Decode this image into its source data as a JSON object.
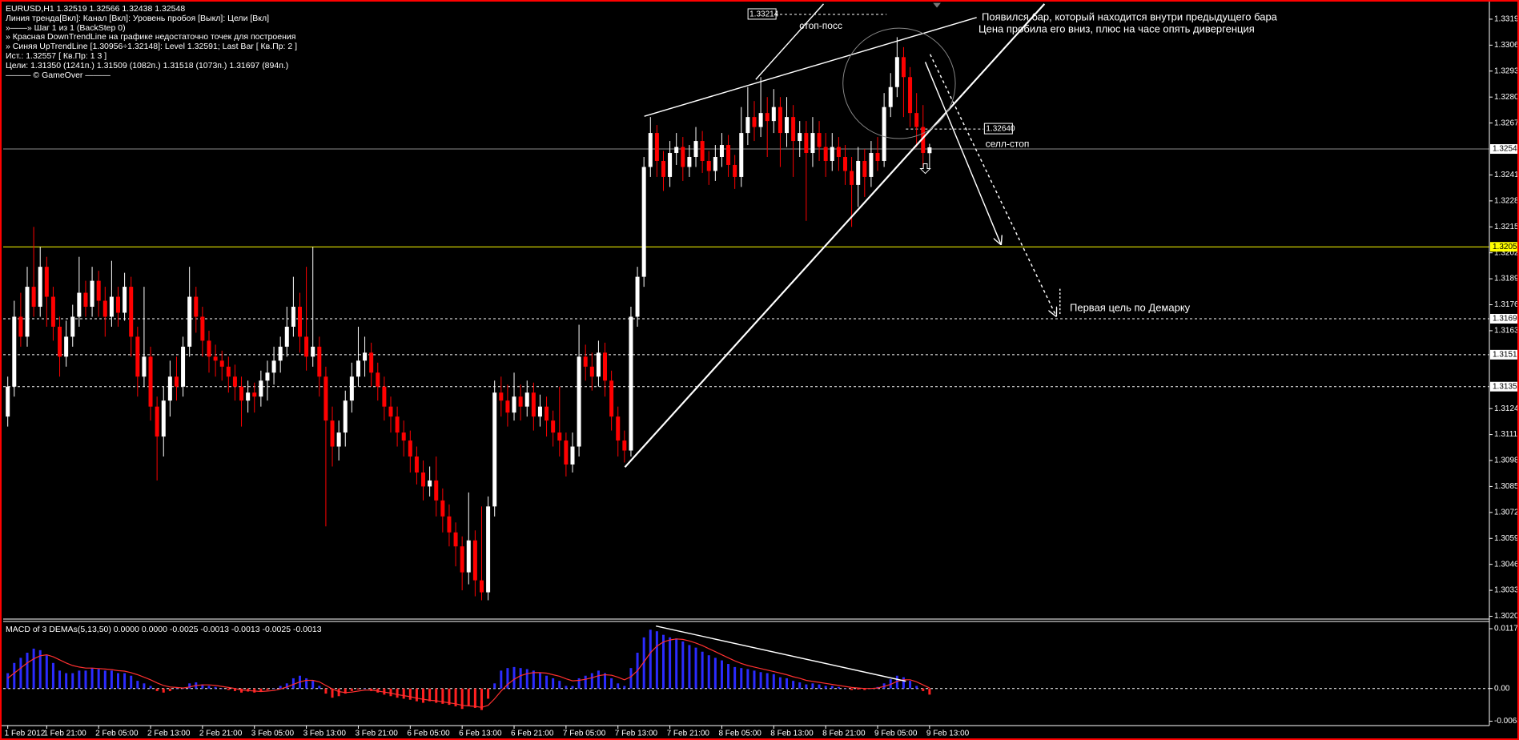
{
  "header": {
    "lines": [
      "EURUSD,H1  1.32519 1.32566 1.32438 1.32548",
      "Линия тренда[Вкл]: Канал [Вкл]: Уровень пробоя [Выкл]: Цели [Вкл]",
      "»——» Шаг 1 из 1 (BackStep 0)",
      "» Красная DownTrendLine на графике недостаточно точек для построения",
      "» Синяя UpTrendLine [1.30956÷1.32148]: Level 1.32591; Last Bar [ Кв.Пр: 2 ]",
      "Ист.: 1.32557 [ Кв.Пр: 1 3 ]",
      "Цели: 1.31350 (1241п.) 1.31509 (1082п.) 1.31518 (1073п.) 1.31697 (894п.)",
      "——— © GameOver ———"
    ]
  },
  "chart_data": [
    {
      "type": "candlestick",
      "up_color": "#ffffff",
      "down_color": "#ff0000",
      "open": [
        1.312,
        1.3135,
        1.317,
        1.316,
        1.3185,
        1.3175,
        1.3195,
        1.318,
        1.3165,
        1.315,
        1.316,
        1.317,
        1.3182,
        1.3175,
        1.3188,
        1.3178,
        1.317,
        1.318,
        1.3172,
        1.3185,
        1.316,
        1.314,
        1.315,
        1.3125,
        1.311,
        1.3128,
        1.314,
        1.3135,
        1.3155,
        1.318,
        1.317,
        1.3158,
        1.315,
        1.3148,
        1.3145,
        1.314,
        1.3135,
        1.3128,
        1.3132,
        1.313,
        1.3138,
        1.3142,
        1.3148,
        1.3155,
        1.3165,
        1.3175,
        1.316,
        1.315,
        1.3155,
        1.314,
        1.3118,
        1.3105,
        1.3112,
        1.3128,
        1.314,
        1.3148,
        1.3152,
        1.3142,
        1.3135,
        1.3125,
        1.312,
        1.3112,
        1.3108,
        1.31,
        1.3092,
        1.3085,
        1.3088,
        1.3078,
        1.307,
        1.3062,
        1.3055,
        1.3042,
        1.3058,
        1.3038,
        1.3032,
        1.3075,
        1.3132,
        1.3128,
        1.3122,
        1.313,
        1.3125,
        1.3132,
        1.312,
        1.3125,
        1.3118,
        1.3112,
        1.3108,
        1.3096,
        1.3105,
        1.315,
        1.3145,
        1.314,
        1.3152,
        1.3138,
        1.312,
        1.3108,
        1.3103,
        1.317,
        1.319,
        1.3245,
        1.3262,
        1.3248,
        1.324,
        1.3252,
        1.3255,
        1.3245,
        1.325,
        1.3258,
        1.3248,
        1.3243,
        1.325,
        1.3256,
        1.3246,
        1.324,
        1.3262,
        1.327,
        1.3265,
        1.3272,
        1.3268,
        1.3275,
        1.3262,
        1.327,
        1.3258,
        1.3262,
        1.3252,
        1.3262,
        1.3255,
        1.3248,
        1.3255,
        1.325,
        1.3243,
        1.3236,
        1.3248,
        1.324,
        1.3252,
        1.3248,
        1.3275,
        1.3285,
        1.33,
        1.329,
        1.3272,
        1.3265,
        1.32519
      ],
      "high": [
        1.314,
        1.3178,
        1.3182,
        1.3195,
        1.3215,
        1.3205,
        1.32,
        1.3185,
        1.317,
        1.3168,
        1.3176,
        1.32,
        1.3188,
        1.3195,
        1.3193,
        1.3185,
        1.3198,
        1.3185,
        1.3192,
        1.319,
        1.3165,
        1.3185,
        1.3155,
        1.313,
        1.3135,
        1.3148,
        1.315,
        1.316,
        1.3195,
        1.3185,
        1.3175,
        1.3163,
        1.3156,
        1.3153,
        1.315,
        1.3146,
        1.314,
        1.3138,
        1.3137,
        1.3143,
        1.3148,
        1.3155,
        1.316,
        1.3175,
        1.319,
        1.3182,
        1.3195,
        1.3205,
        1.316,
        1.3145,
        1.3125,
        1.3118,
        1.3133,
        1.3147,
        1.3165,
        1.316,
        1.3157,
        1.3147,
        1.314,
        1.313,
        1.3125,
        1.3118,
        1.3113,
        1.3105,
        1.3098,
        1.3095,
        1.31,
        1.3084,
        1.3076,
        1.3067,
        1.306,
        1.3082,
        1.3063,
        1.3075,
        1.308,
        1.3138,
        1.314,
        1.3136,
        1.3142,
        1.3136,
        1.3138,
        1.3137,
        1.3131,
        1.313,
        1.3123,
        1.3135,
        1.3112,
        1.3112,
        1.3166,
        1.3156,
        1.3152,
        1.3158,
        1.3157,
        1.3143,
        1.3125,
        1.3113,
        1.3175,
        1.3195,
        1.325,
        1.327,
        1.3266,
        1.3253,
        1.3258,
        1.3262,
        1.326,
        1.3256,
        1.3265,
        1.3263,
        1.3253,
        1.3256,
        1.3262,
        1.3261,
        1.3251,
        1.3275,
        1.3285,
        1.3278,
        1.329,
        1.328,
        1.3284,
        1.328,
        1.328,
        1.3276,
        1.3268,
        1.3268,
        1.327,
        1.3268,
        1.3262,
        1.3262,
        1.326,
        1.3256,
        1.325,
        1.3255,
        1.3254,
        1.3258,
        1.326,
        1.3282,
        1.3292,
        1.331,
        1.3305,
        1.3295,
        1.3282,
        1.3276,
        1.32566
      ],
      "low": [
        1.3115,
        1.313,
        1.3155,
        1.3155,
        1.317,
        1.317,
        1.3165,
        1.3158,
        1.314,
        1.3145,
        1.3155,
        1.3165,
        1.317,
        1.317,
        1.317,
        1.316,
        1.3165,
        1.3165,
        1.3168,
        1.315,
        1.313,
        1.3135,
        1.3118,
        1.3088,
        1.31,
        1.312,
        1.3128,
        1.313,
        1.315,
        1.3162,
        1.315,
        1.3142,
        1.314,
        1.3138,
        1.3132,
        1.3128,
        1.3115,
        1.3122,
        1.3122,
        1.3125,
        1.3128,
        1.3136,
        1.3142,
        1.315,
        1.316,
        1.3152,
        1.3143,
        1.3145,
        1.313,
        1.3065,
        1.3095,
        1.3098,
        1.3105,
        1.3122,
        1.3135,
        1.314,
        1.3135,
        1.3128,
        1.3118,
        1.3112,
        1.3105,
        1.31,
        1.3092,
        1.3086,
        1.3078,
        1.308,
        1.307,
        1.3062,
        1.3055,
        1.3045,
        1.3033,
        1.3036,
        1.303,
        1.3028,
        1.3028,
        1.307,
        1.312,
        1.3115,
        1.3118,
        1.3118,
        1.312,
        1.3113,
        1.3115,
        1.311,
        1.3105,
        1.31,
        1.309,
        1.3092,
        1.31,
        1.3138,
        1.3133,
        1.3135,
        1.313,
        1.3113,
        1.31,
        1.3097,
        1.31,
        1.3165,
        1.3185,
        1.324,
        1.324,
        1.3233,
        1.3235,
        1.3246,
        1.3238,
        1.324,
        1.3245,
        1.3242,
        1.3236,
        1.3238,
        1.3245,
        1.324,
        1.3234,
        1.3235,
        1.3256,
        1.3258,
        1.326,
        1.325,
        1.3262,
        1.3245,
        1.3255,
        1.324,
        1.325,
        1.3218,
        1.3245,
        1.3248,
        1.324,
        1.3243,
        1.3243,
        1.3236,
        1.3215,
        1.3225,
        1.323,
        1.3235,
        1.3243,
        1.3245,
        1.327,
        1.328,
        1.327,
        1.3265,
        1.3255,
        1.3245,
        1.32438
      ],
      "close": [
        1.3135,
        1.317,
        1.316,
        1.3185,
        1.3175,
        1.3195,
        1.318,
        1.3165,
        1.315,
        1.316,
        1.317,
        1.3182,
        1.3175,
        1.3188,
        1.3178,
        1.317,
        1.318,
        1.3172,
        1.3185,
        1.316,
        1.314,
        1.315,
        1.3125,
        1.311,
        1.3128,
        1.314,
        1.3135,
        1.3155,
        1.318,
        1.317,
        1.3158,
        1.315,
        1.3148,
        1.3145,
        1.314,
        1.3135,
        1.3128,
        1.3132,
        1.313,
        1.3138,
        1.3142,
        1.3148,
        1.3155,
        1.3165,
        1.3175,
        1.316,
        1.315,
        1.3155,
        1.314,
        1.3118,
        1.3105,
        1.3112,
        1.3128,
        1.314,
        1.3148,
        1.3152,
        1.3142,
        1.3135,
        1.3125,
        1.312,
        1.3112,
        1.3108,
        1.31,
        1.3092,
        1.3085,
        1.3088,
        1.3078,
        1.307,
        1.3062,
        1.3055,
        1.3042,
        1.3058,
        1.3038,
        1.3032,
        1.3075,
        1.3132,
        1.3128,
        1.3122,
        1.313,
        1.3125,
        1.3132,
        1.312,
        1.3125,
        1.3118,
        1.3112,
        1.3108,
        1.3096,
        1.3105,
        1.315,
        1.3145,
        1.314,
        1.3152,
        1.3138,
        1.312,
        1.3108,
        1.3103,
        1.317,
        1.319,
        1.3245,
        1.3262,
        1.3248,
        1.324,
        1.3252,
        1.3255,
        1.3245,
        1.325,
        1.3258,
        1.3248,
        1.3243,
        1.325,
        1.3256,
        1.3246,
        1.324,
        1.3262,
        1.327,
        1.3265,
        1.3272,
        1.3268,
        1.3275,
        1.3262,
        1.327,
        1.3258,
        1.3262,
        1.3252,
        1.3262,
        1.3255,
        1.3248,
        1.3255,
        1.325,
        1.3243,
        1.3236,
        1.3248,
        1.324,
        1.3252,
        1.3248,
        1.3275,
        1.3285,
        1.33,
        1.329,
        1.3272,
        1.3265,
        1.3252,
        1.32548
      ],
      "ylim": [
        1.3019,
        1.3327
      ],
      "yticks": [
        {
          "value": 1.302,
          "label": "1.3020"
        },
        1.3033,
        1.3046,
        1.3059,
        1.3072,
        1.3085,
        1.3098,
        1.3111,
        1.3124,
        1.3163,
        1.3176,
        1.3189,
        1.3202,
        1.3215,
        1.3228,
        1.3241,
        1.3267,
        {
          "value": 1.328,
          "label": "1.3280"
        },
        1.3293,
        1.3306,
        1.3319
      ],
      "xticks": [
        {
          "value": 0,
          "label": "1 Feb 2012"
        },
        {
          "value": 6,
          "label": "1 Feb 21:00"
        },
        {
          "value": 14,
          "label": "2 Feb 05:00"
        },
        {
          "value": 22,
          "label": "2 Feb 13:00"
        },
        {
          "value": 30,
          "label": "2 Feb 21:00"
        },
        {
          "value": 38,
          "label": "3 Feb 05:00"
        },
        {
          "value": 46,
          "label": "3 Feb 13:00"
        },
        {
          "value": 54,
          "label": "3 Feb 21:00"
        },
        {
          "value": 62,
          "label": "6 Feb 05:00"
        },
        {
          "value": 70,
          "label": "6 Feb 13:00"
        },
        {
          "value": 78,
          "label": "6 Feb 21:00"
        },
        {
          "value": 86,
          "label": "7 Feb 05:00"
        },
        {
          "value": 94,
          "label": "7 Feb 13:00"
        },
        {
          "value": 102,
          "label": "7 Feb 21:00"
        },
        {
          "value": 110,
          "label": "8 Feb 05:00"
        },
        {
          "value": 118,
          "label": "8 Feb 13:00"
        },
        {
          "value": 126,
          "label": "8 Feb 21:00"
        },
        {
          "value": 134,
          "label": "9 Feb 05:00"
        },
        {
          "value": 142,
          "label": "9 Feb 13:00"
        }
      ],
      "levels": [
        {
          "value": 1.3205,
          "color": "#ffff00",
          "style": "solid"
        },
        {
          "value": 1.3169,
          "color": "#ffffff",
          "style": "dashed"
        },
        {
          "value": 1.3151,
          "color": "#ffffff",
          "style": "dashed"
        },
        {
          "value": 1.3135,
          "color": "#ffffff",
          "style": "dashed"
        },
        {
          "value": 1.3254,
          "color": "#8c8c8c",
          "style": "solid"
        }
      ],
      "orders": [
        {
          "value": 1.33214,
          "name": "стоп-посс"
        },
        {
          "value": 1.3264,
          "label": "1.32640",
          "name": "селл-стоп"
        }
      ],
      "notes": [
        "Появился бар, который находится внутри предыдущего бара",
        "Цена пробила его вниз, плюс на часе опять дивергенция",
        "Первая цель по Демарку"
      ]
    },
    {
      "type": "macd",
      "title": "MACD of 3 DEMAs(5,13,50) 0.0000 0.0000 -0.0025 -0.0013 -0.0013 -0.0025 -0.0013",
      "ylim": [
        -0.0071,
        0.0128
      ],
      "yticks": [
        0.0117,
        {
          "value": 0,
          "label": "0.00"
        },
        -0.0064
      ],
      "series": [
        {
          "kind": "histogram",
          "color": "#2b2bff",
          "down_color": "#ff2020",
          "values": [
            0.003,
            0.005,
            0.006,
            0.007,
            0.0078,
            0.0075,
            0.0065,
            0.005,
            0.0035,
            0.003,
            0.003,
            0.0035,
            0.0035,
            0.004,
            0.0038,
            0.0035,
            0.0035,
            0.003,
            0.003,
            0.0025,
            0.0015,
            0.001,
            0.0005,
            -0.0005,
            -0.0008,
            -0.0005,
            0.0,
            0.0,
            0.001,
            0.0012,
            0.0008,
            0.0005,
            0.0003,
            0.0,
            -0.0003,
            -0.0005,
            -0.0008,
            -0.0006,
            -0.0008,
            -0.0006,
            -0.0003,
            0.0,
            0.0005,
            0.001,
            0.002,
            0.0025,
            0.002,
            0.0015,
            0.0005,
            -0.001,
            -0.0018,
            -0.0015,
            -0.001,
            -0.0005,
            -0.0002,
            0.0,
            -0.0005,
            -0.0008,
            -0.0012,
            -0.0015,
            -0.0018,
            -0.002,
            -0.0022,
            -0.0025,
            -0.0028,
            -0.0025,
            -0.0028,
            -0.003,
            -0.0032,
            -0.0035,
            -0.004,
            -0.0035,
            -0.0038,
            -0.0042,
            -0.002,
            0.001,
            0.0035,
            0.004,
            0.0042,
            0.004,
            0.0038,
            0.0035,
            0.003,
            0.0025,
            0.002,
            0.0015,
            0.0005,
            0.0005,
            0.002,
            0.0025,
            0.003,
            0.0035,
            0.003,
            0.002,
            0.001,
            0.0005,
            0.004,
            0.007,
            0.01,
            0.0115,
            0.0112,
            0.0105,
            0.01,
            0.0098,
            0.0092,
            0.0085,
            0.008,
            0.0072,
            0.0065,
            0.006,
            0.0055,
            0.0048,
            0.0042,
            0.004,
            0.0038,
            0.0035,
            0.0032,
            0.003,
            0.0028,
            0.0022,
            0.002,
            0.0015,
            0.0012,
            0.0008,
            0.001,
            0.0008,
            0.0005,
            0.0005,
            0.0003,
            0.0,
            -0.0003,
            -0.0002,
            -0.0003,
            0.0,
            0.0003,
            0.001,
            0.0018,
            0.0025,
            0.0022,
            0.0015,
            0.0005,
            -0.0005,
            -0.0012
          ]
        },
        {
          "kind": "line",
          "color": "#ff3030",
          "values": [
            0.002,
            0.003,
            0.004,
            0.005,
            0.0058,
            0.0064,
            0.0066,
            0.0062,
            0.0056,
            0.005,
            0.0045,
            0.0042,
            0.004,
            0.004,
            0.0039,
            0.0038,
            0.0037,
            0.0035,
            0.0034,
            0.0031,
            0.0027,
            0.0022,
            0.0017,
            0.0011,
            0.0006,
            0.0003,
            0.0002,
            0.0001,
            0.0003,
            0.0006,
            0.0007,
            0.0007,
            0.0006,
            0.0004,
            0.0002,
            0.0,
            -0.0003,
            -0.0004,
            -0.0005,
            -0.0006,
            -0.0005,
            -0.0004,
            -0.0001,
            0.0003,
            0.0008,
            0.0013,
            0.0016,
            0.0016,
            0.0013,
            0.0006,
            -0.0001,
            -0.0006,
            -0.0008,
            -0.0007,
            -0.0005,
            -0.0003,
            -0.0003,
            -0.0005,
            -0.0007,
            -0.0009,
            -0.0012,
            -0.0014,
            -0.0016,
            -0.0019,
            -0.0021,
            -0.0023,
            -0.0024,
            -0.0026,
            -0.0028,
            -0.003,
            -0.0033,
            -0.0034,
            -0.0035,
            -0.0037,
            -0.0033,
            -0.002,
            -0.0005,
            0.0008,
            0.0018,
            0.0025,
            0.0029,
            0.0031,
            0.0031,
            0.003,
            0.0027,
            0.0024,
            0.0019,
            0.0015,
            0.0016,
            0.0018,
            0.0021,
            0.0025,
            0.0027,
            0.0026,
            0.0022,
            0.0017,
            0.0023,
            0.0035,
            0.0052,
            0.007,
            0.0083,
            0.0091,
            0.0095,
            0.0097,
            0.0096,
            0.0093,
            0.0089,
            0.0084,
            0.0078,
            0.0072,
            0.0066,
            0.006,
            0.0054,
            0.0049,
            0.0045,
            0.0042,
            0.0039,
            0.0036,
            0.0033,
            0.003,
            0.0027,
            0.0023,
            0.002,
            0.0016,
            0.0014,
            0.0012,
            0.001,
            0.0008,
            0.0006,
            0.0004,
            0.0002,
            0.0001,
            0.0,
            0.0,
            0.0001,
            0.0004,
            0.0008,
            0.0014,
            0.0017,
            0.0017,
            0.0013,
            0.0007,
            0.0001
          ]
        }
      ]
    }
  ]
}
